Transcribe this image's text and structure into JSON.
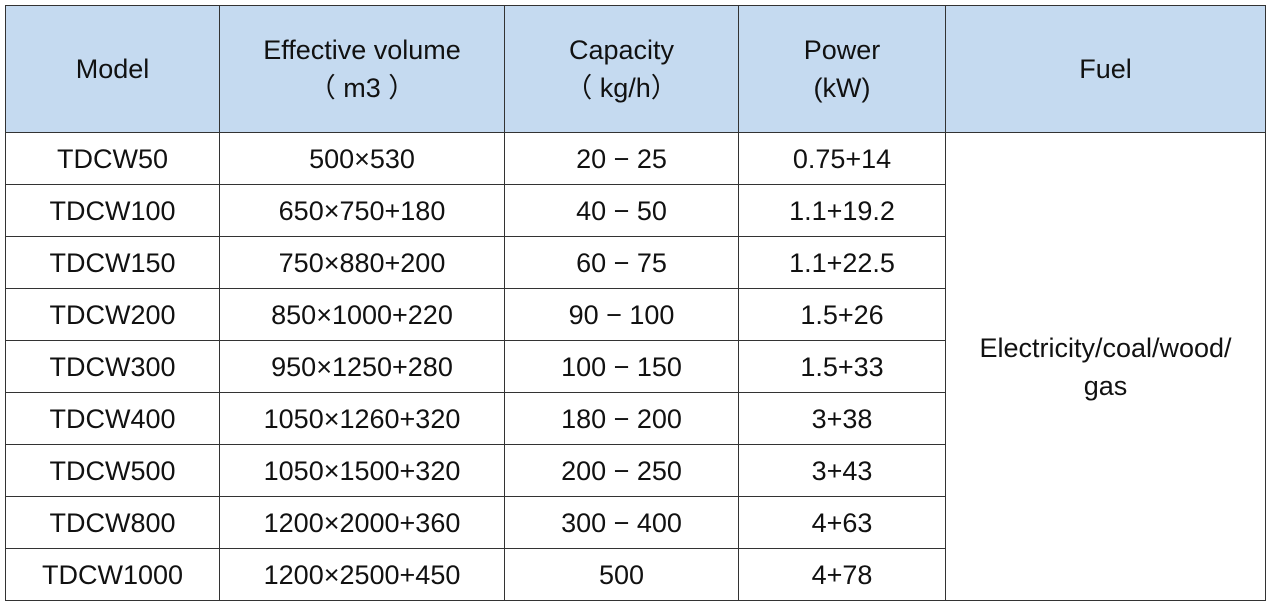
{
  "table": {
    "header": [
      [
        "Model"
      ],
      [
        "Effective volume",
        "（ m3 ）"
      ],
      [
        "Capacity",
        "（ kg/h）"
      ],
      [
        "Power",
        "(kW)"
      ],
      [
        "Fuel"
      ]
    ],
    "rows": [
      [
        "TDCW50",
        "500×530",
        "20 − 25",
        "0.75+14"
      ],
      [
        "TDCW100",
        "650×750+180",
        "40 − 50",
        "1.1+19.2"
      ],
      [
        "TDCW150",
        "750×880+200",
        "60 − 75",
        "1.1+22.5"
      ],
      [
        "TDCW200",
        "850×1000+220",
        "90 − 100",
        "1.5+26"
      ],
      [
        "TDCW300",
        "950×1250+280",
        "100 − 150",
        "1.5+33"
      ],
      [
        "TDCW400",
        "1050×1260+320",
        "180 − 200",
        "3+38"
      ],
      [
        "TDCW500",
        "1050×1500+320",
        "200 − 250",
        "3+43"
      ],
      [
        "TDCW800",
        "1200×2000+360",
        "300 − 400",
        "4+63"
      ],
      [
        "TDCW1000",
        "1200×2500+450",
        "500",
        "4+78"
      ]
    ],
    "fuel": [
      "Electricity/coal/wood/",
      "gas"
    ]
  }
}
